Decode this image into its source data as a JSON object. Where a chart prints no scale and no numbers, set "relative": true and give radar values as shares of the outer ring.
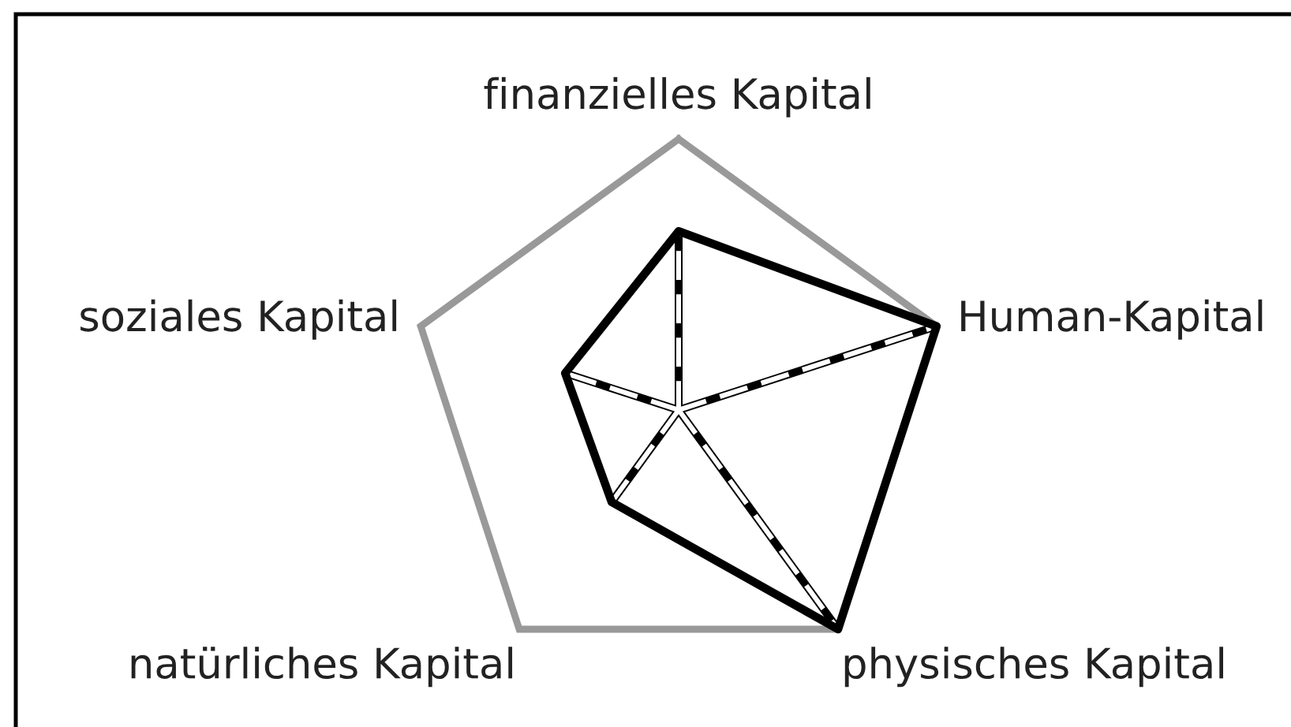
{
  "chart_data": {
    "type": "radar",
    "relative": true,
    "categories": [
      "finanzielles Kapital",
      "Human-Kapital",
      "physisches Kapital",
      "natürliches Kapital",
      "soziales Kapital"
    ],
    "series": [
      {
        "color": "#000000",
        "values": [
          0.66,
          1,
          1,
          0.42,
          0.44
        ]
      }
    ],
    "grid": true
  }
}
